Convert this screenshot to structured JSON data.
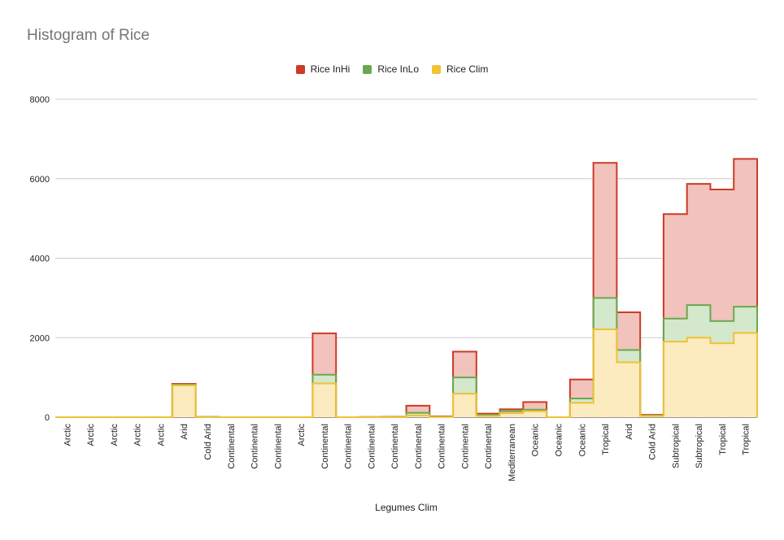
{
  "chart_data": {
    "type": "area",
    "title": "Histogram of Rice",
    "xlabel": "Legumes Clim",
    "ylabel": "",
    "ylim": [
      0,
      8000
    ],
    "yticks": [
      "0",
      "2000",
      "4000",
      "6000",
      "8000"
    ],
    "ytick_values": [
      0,
      2000,
      4000,
      6000,
      8000
    ],
    "grid": true,
    "legend_position": "top",
    "categories": [
      "Arctic",
      "Arctic",
      "Arctic",
      "Arctic",
      "Arctic",
      "Arid",
      "Cold Arid",
      "Continental",
      "Continental",
      "Continental",
      "Arctic",
      "Continental",
      "Continental",
      "Continental",
      "Continental",
      "Continental",
      "Continental",
      "Continental",
      "Continental",
      "Mediterranean",
      "Oceanic",
      "Oceanic",
      "Oceanic",
      "Tropical",
      "Arid",
      "Cold Arid",
      "Subtropical",
      "Subtropical",
      "Tropical",
      "Tropical"
    ],
    "series": [
      {
        "name": "Rice InHi",
        "color": "#cc3b25",
        "fill": "#f2c2bc",
        "values": [
          0,
          0,
          0,
          0,
          0,
          840,
          10,
          0,
          0,
          0,
          0,
          2110,
          0,
          5,
          10,
          290,
          20,
          1650,
          90,
          200,
          380,
          0,
          950,
          6400,
          2640,
          60,
          5110,
          5870,
          5730,
          6500
        ]
      },
      {
        "name": "Rice InLo",
        "color": "#6aa84f",
        "fill": "#d4e8cc",
        "values": [
          0,
          0,
          0,
          0,
          0,
          820,
          5,
          0,
          0,
          0,
          0,
          1070,
          0,
          0,
          5,
          110,
          10,
          1000,
          60,
          150,
          190,
          0,
          470,
          3000,
          1690,
          40,
          2480,
          2820,
          2420,
          2780
        ]
      },
      {
        "name": "Rice Clim",
        "color": "#f1c232",
        "fill": "#fcebbf",
        "values": [
          0,
          0,
          0,
          0,
          0,
          800,
          5,
          0,
          0,
          0,
          0,
          850,
          0,
          0,
          0,
          40,
          5,
          590,
          30,
          100,
          150,
          0,
          360,
          2210,
          1380,
          30,
          1900,
          2000,
          1860,
          2120
        ]
      }
    ]
  }
}
